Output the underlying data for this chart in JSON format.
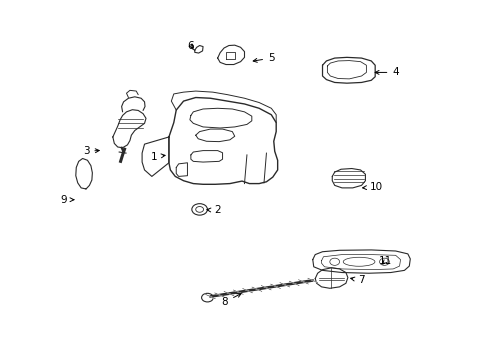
{
  "background_color": "#ffffff",
  "line_color": "#2a2a2a",
  "label_color": "#000000",
  "figsize": [
    4.89,
    3.6
  ],
  "dpi": 100,
  "label_targets": {
    "1": [
      0.315,
      0.565,
      0.345,
      0.57
    ],
    "2": [
      0.445,
      0.415,
      0.415,
      0.418
    ],
    "3": [
      0.175,
      0.58,
      0.21,
      0.583
    ],
    "4": [
      0.81,
      0.8,
      0.76,
      0.8
    ],
    "5": [
      0.555,
      0.84,
      0.51,
      0.83
    ],
    "6": [
      0.39,
      0.875,
      0.4,
      0.86
    ],
    "7": [
      0.74,
      0.22,
      0.71,
      0.228
    ],
    "8": [
      0.46,
      0.16,
      0.5,
      0.188
    ],
    "9": [
      0.13,
      0.445,
      0.158,
      0.445
    ],
    "10": [
      0.77,
      0.48,
      0.74,
      0.478
    ],
    "11": [
      0.79,
      0.275,
      0.778,
      0.258
    ]
  }
}
